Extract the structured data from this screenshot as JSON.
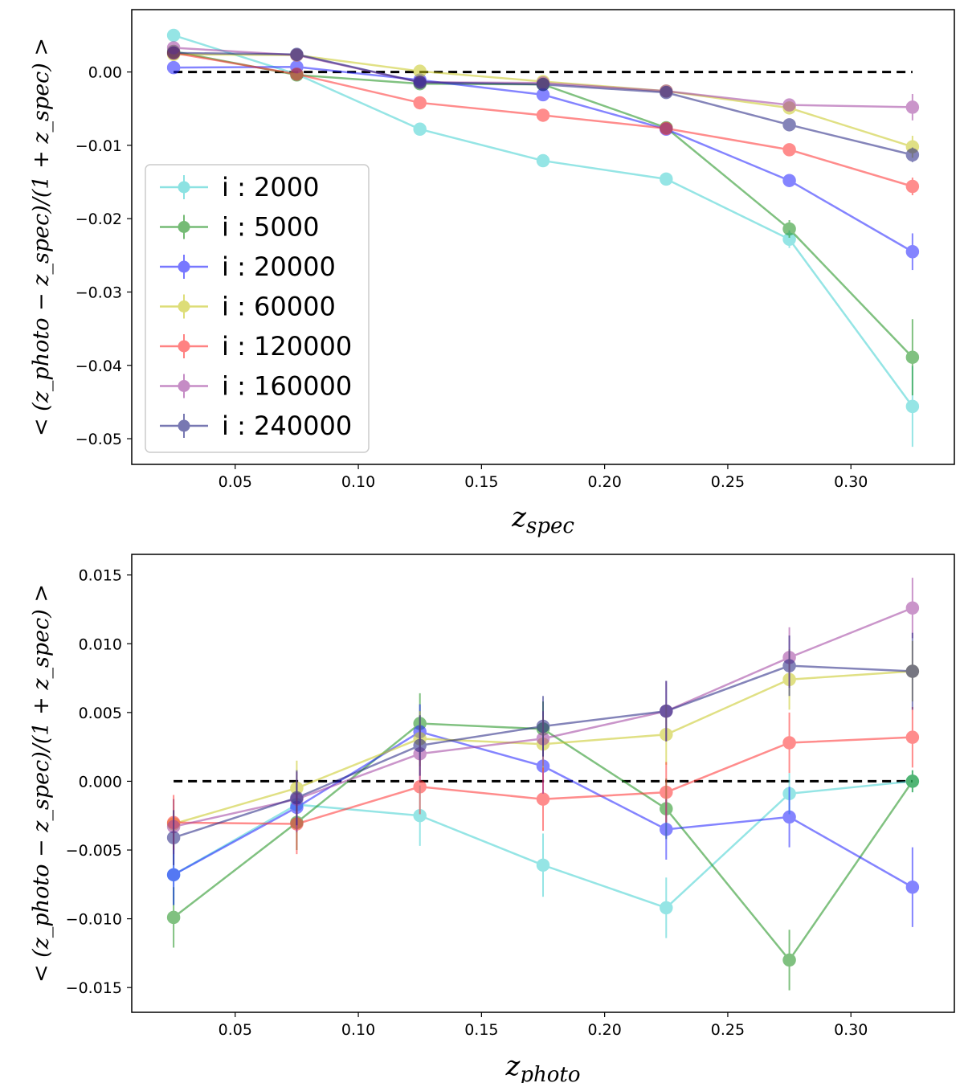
{
  "chart_data": [
    {
      "type": "line",
      "panel": "top",
      "xlabel": "z_spec",
      "ylabel": "< (z_photo − z_spec)/(1 + z_spec) >",
      "xlim": [
        0.008,
        0.342
      ],
      "ylim": [
        -0.0535,
        0.0085
      ],
      "xticks": [
        0.05,
        0.1,
        0.15,
        0.2,
        0.25,
        0.3
      ],
      "xtick_labels": [
        "0.05",
        "0.10",
        "0.15",
        "0.20",
        "0.25",
        "0.30"
      ],
      "yticks": [
        0.0,
        -0.01,
        -0.02,
        -0.03,
        -0.04,
        -0.05
      ],
      "ytick_labels": [
        "0.00",
        "−0.01",
        "−0.02",
        "−0.03",
        "−0.04",
        "−0.05"
      ],
      "reference_line": 0,
      "x": [
        0.025,
        0.075,
        0.125,
        0.175,
        0.225,
        0.275,
        0.325
      ],
      "legend_position": "center-left",
      "series": [
        {
          "name": "i : 2000",
          "color": "#40d0d0",
          "values": [
            0.005,
            -0.0003,
            -0.0078,
            -0.0121,
            -0.0146,
            -0.0228,
            -0.0456
          ],
          "errors": [
            0.0004,
            0.0004,
            0.0005,
            0.0005,
            0.0006,
            0.0012,
            0.0055
          ]
        },
        {
          "name": "i : 5000",
          "color": "#1a8f1a",
          "values": [
            0.0028,
            -0.0004,
            -0.0016,
            -0.0017,
            -0.0076,
            -0.0214,
            -0.0389
          ],
          "errors": [
            0.0004,
            0.0004,
            0.0005,
            0.0005,
            0.0006,
            0.0012,
            0.0052
          ]
        },
        {
          "name": "i : 20000",
          "color": "#2020ff",
          "values": [
            0.0006,
            0.0007,
            -0.0011,
            -0.0031,
            -0.0078,
            -0.0148,
            -0.0245
          ],
          "errors": [
            0.0003,
            0.0003,
            0.0003,
            0.0004,
            0.0005,
            0.0008,
            0.0025
          ]
        },
        {
          "name": "i : 60000",
          "color": "#c8c820",
          "values": [
            0.0024,
            0.0023,
            0.0001,
            -0.0013,
            -0.0026,
            -0.0049,
            -0.0102
          ],
          "errors": [
            0.0003,
            0.0003,
            0.0003,
            0.0003,
            0.0004,
            0.0005,
            0.0015
          ]
        },
        {
          "name": "i : 120000",
          "color": "#ff3030",
          "values": [
            0.0026,
            -0.0003,
            -0.0042,
            -0.0059,
            -0.0077,
            -0.0106,
            -0.0156
          ],
          "errors": [
            0.0003,
            0.0003,
            0.0003,
            0.0003,
            0.0004,
            0.0005,
            0.0012
          ]
        },
        {
          "name": "i : 160000",
          "color": "#a040a0",
          "values": [
            0.0033,
            0.0023,
            -0.0014,
            -0.0015,
            -0.0026,
            -0.0045,
            -0.0048
          ],
          "errors": [
            0.0003,
            0.0003,
            0.0003,
            0.0003,
            0.0004,
            0.0005,
            0.0018
          ]
        },
        {
          "name": "i : 240000",
          "color": "#202080",
          "values": [
            0.0026,
            0.0024,
            -0.0014,
            -0.0017,
            -0.0028,
            -0.0072,
            -0.0113
          ],
          "errors": [
            0.0003,
            0.0003,
            0.0003,
            0.0003,
            0.0004,
            0.0005,
            0.001
          ]
        }
      ]
    },
    {
      "type": "line",
      "panel": "bottom",
      "xlabel": "z_photo",
      "ylabel": "< (z_photo − z_spec)/(1 + z_spec) >",
      "xlim": [
        0.008,
        0.342
      ],
      "ylim": [
        -0.0168,
        0.0165
      ],
      "xticks": [
        0.05,
        0.1,
        0.15,
        0.2,
        0.25,
        0.3
      ],
      "xtick_labels": [
        "0.05",
        "0.10",
        "0.15",
        "0.20",
        "0.25",
        "0.30"
      ],
      "yticks": [
        0.015,
        0.01,
        0.005,
        0.0,
        -0.005,
        -0.01,
        -0.015
      ],
      "ytick_labels": [
        "0.015",
        "0.010",
        "0.005",
        "0.000",
        "−0.005",
        "−0.010",
        "−0.015"
      ],
      "reference_line": 0,
      "x": [
        0.025,
        0.075,
        0.125,
        0.175,
        0.225,
        0.275,
        0.325
      ],
      "series": [
        {
          "name": "i : 2000",
          "color": "#40d0d0",
          "values": [
            -0.0068,
            -0.0017,
            -0.0025,
            -0.0061,
            -0.0092,
            -0.0009,
            0.0
          ],
          "errors": [
            0.0022,
            0.0015,
            0.0022,
            0.0023,
            0.0022,
            0.0015,
            0.0008
          ]
        },
        {
          "name": "i : 5000",
          "color": "#1a8f1a",
          "values": [
            -0.0099,
            -0.003,
            0.0042,
            0.0038,
            -0.002,
            -0.013,
            0.0
          ],
          "errors": [
            0.0022,
            0.002,
            0.0022,
            0.002,
            0.0022,
            0.0022,
            0.0008
          ]
        },
        {
          "name": "i : 20000",
          "color": "#2020ff",
          "values": [
            -0.0068,
            -0.0019,
            0.0036,
            0.0011,
            -0.0035,
            -0.0026,
            -0.0077
          ],
          "errors": [
            0.0022,
            0.0018,
            0.002,
            0.002,
            0.0022,
            0.0022,
            0.0029
          ]
        },
        {
          "name": "i : 60000",
          "color": "#c8c820",
          "values": [
            -0.0031,
            -0.0005,
            0.0031,
            0.0027,
            0.0034,
            0.0074,
            0.008
          ],
          "errors": [
            0.0018,
            0.002,
            0.002,
            0.002,
            0.0022,
            0.0022,
            0.0022
          ]
        },
        {
          "name": "i : 120000",
          "color": "#ff3030",
          "values": [
            -0.003,
            -0.0031,
            -0.0004,
            -0.0013,
            -0.0008,
            0.0028,
            0.0032
          ],
          "errors": [
            0.002,
            0.0022,
            0.002,
            0.0023,
            0.0022,
            0.0022,
            0.0022
          ]
        },
        {
          "name": "i : 160000",
          "color": "#a040a0",
          "values": [
            -0.0033,
            -0.0013,
            0.002,
            0.0031,
            0.0051,
            0.009,
            0.0126
          ],
          "errors": [
            0.002,
            0.002,
            0.002,
            0.002,
            0.0022,
            0.0022,
            0.0022
          ]
        },
        {
          "name": "i : 240000",
          "color": "#202080",
          "values": [
            -0.0041,
            -0.0012,
            0.0026,
            0.004,
            0.0051,
            0.0084,
            0.008
          ],
          "errors": [
            0.002,
            0.002,
            0.0022,
            0.0022,
            0.0022,
            0.0022,
            0.0028
          ]
        }
      ]
    }
  ]
}
